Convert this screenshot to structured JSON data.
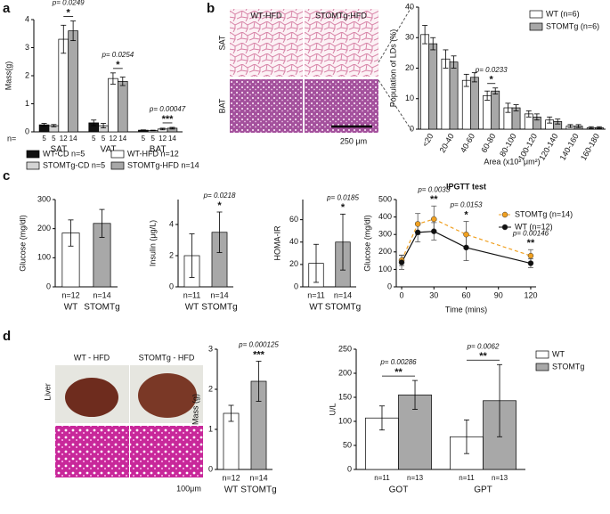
{
  "panels": [
    "a",
    "b",
    "c",
    "d"
  ],
  "adipose_images": {
    "columns": [
      "WT-HFD",
      "STOMTg-HFD"
    ],
    "rows": [
      "SAT",
      "BAT"
    ],
    "scale_bar": "250 μm"
  },
  "liver_images": {
    "columns": [
      "WT - HFD",
      "STOMTg - HFD"
    ],
    "row": "Liver",
    "scale_bar": "100μm"
  },
  "chart_data": [
    {
      "type": "bar",
      "ylabel": "Mass(g)",
      "n_prefix": "n=",
      "categories": [
        "SAT",
        "VAT",
        "BAT"
      ],
      "series": [
        {
          "name": "WT-CD n=5",
          "color": "#111111",
          "n": 5,
          "values": [
            0.25,
            0.32,
            0.06
          ],
          "errors": [
            0.05,
            0.1,
            0.01
          ]
        },
        {
          "name": "STOMTg-CD n=5",
          "color": "#d4d4d4",
          "n": 5,
          "values": [
            0.22,
            0.22,
            0.05
          ],
          "errors": [
            0.04,
            0.08,
            0.01
          ]
        },
        {
          "name": "WT-HFD n=12",
          "color": "#ffffff",
          "n": 12,
          "values": [
            3.3,
            1.9,
            0.1
          ],
          "errors": [
            0.5,
            0.2,
            0.03
          ]
        },
        {
          "name": "STOMTg-HFD n=14",
          "color": "#a8a8a8",
          "n": 14,
          "values": [
            3.6,
            1.8,
            0.13
          ],
          "errors": [
            0.35,
            0.15,
            0.03
          ]
        }
      ],
      "annotations": [
        {
          "p": "p= 0.0249",
          "stars": "*"
        },
        {
          "p": "p= 0.0254",
          "stars": "*"
        },
        {
          "p": "p= 0.00047",
          "stars": "***"
        }
      ],
      "ylim": [
        0,
        4
      ],
      "yticks": [
        0,
        1,
        2,
        3,
        4
      ]
    },
    {
      "type": "bar",
      "ylabel": "Population of LDs (%)",
      "xlabel": "Area (x10² μm²)",
      "categories": [
        "<20",
        "20-40",
        "40-60",
        "60-80",
        "80-100",
        "100-120",
        "120-140",
        "140-160",
        "160-180"
      ],
      "series": [
        {
          "name": "WT (n=6)",
          "color": "#ffffff",
          "values": [
            31,
            23,
            16,
            11,
            7,
            5,
            3,
            1,
            0.5
          ],
          "errors": [
            3,
            3,
            2,
            1.5,
            1.5,
            1,
            1,
            0.5,
            0.3
          ]
        },
        {
          "name": "STOMTg (n=6)",
          "color": "#a8a8a8",
          "values": [
            28,
            22,
            17,
            12.5,
            7,
            4,
            2.5,
            1,
            0.5
          ],
          "errors": [
            2,
            2,
            1.5,
            1,
            1,
            1,
            0.8,
            0.5,
            0.3
          ]
        }
      ],
      "annotations": [
        null,
        null,
        null,
        {
          "p": "p= 0.0233",
          "stars": "*"
        },
        null,
        null,
        null,
        null,
        null
      ],
      "ylim": [
        0,
        40
      ],
      "yticks": [
        0,
        10,
        20,
        30,
        40
      ]
    },
    {
      "type": "bar",
      "ylabel": "Glucose (mg/dl)",
      "categories": [
        "WT",
        "STOMTg"
      ],
      "values": [
        185,
        218
      ],
      "errors": [
        45,
        48
      ],
      "colors": [
        "#ffffff",
        "#a8a8a8"
      ],
      "n_labels": [
        "n=12",
        "n=14"
      ],
      "ylim": [
        0,
        300
      ],
      "yticks": [
        0,
        100,
        200,
        300
      ]
    },
    {
      "type": "bar",
      "ylabel": "Insulin (μg/L)",
      "categories": [
        "WT",
        "STOMTg"
      ],
      "values": [
        2.0,
        3.5
      ],
      "errors": [
        1.4,
        1.3
      ],
      "colors": [
        "#ffffff",
        "#a8a8a8"
      ],
      "n_labels": [
        "n=11",
        "n=14"
      ],
      "annotation": {
        "p": "p= 0.0218",
        "stars": "*"
      },
      "ylim": [
        0,
        5.6
      ],
      "yticks": [
        0,
        2,
        4
      ]
    },
    {
      "type": "bar",
      "ylabel": "HOMA-IR",
      "categories": [
        "WT",
        "STOMTg"
      ],
      "values": [
        21,
        40
      ],
      "errors": [
        17,
        25
      ],
      "colors": [
        "#ffffff",
        "#a8a8a8"
      ],
      "n_labels": [
        "n=11",
        "n=14"
      ],
      "annotation": {
        "p": "p= 0.0185",
        "stars": "*"
      },
      "ylim": [
        0,
        78
      ],
      "yticks": [
        0,
        20,
        40,
        60
      ]
    },
    {
      "type": "line",
      "title": "IPGTT test",
      "ylabel": "Glucose (mg/dl)",
      "xlabel": "Time (mins)",
      "x": [
        0,
        15,
        30,
        60,
        120
      ],
      "series": [
        {
          "name": "STOMTg (n=14)",
          "color": "#f0a020",
          "dashed": true,
          "values": [
            152,
            360,
            388,
            300,
            178
          ],
          "errors": [
            30,
            60,
            75,
            75,
            35
          ]
        },
        {
          "name": "WT (n=12)",
          "color": "#111111",
          "dashed": false,
          "values": [
            140,
            312,
            318,
            225,
            135
          ],
          "errors": [
            40,
            55,
            50,
            75,
            25
          ]
        }
      ],
      "annotations": [
        {
          "x": 30,
          "p": "p= 0.0033",
          "stars": "**"
        },
        {
          "x": 60,
          "p": "p= 0.0153",
          "stars": "*"
        },
        {
          "x": 120,
          "p": "p= 0.00146",
          "stars": "**"
        }
      ],
      "xlim": [
        -5,
        125
      ],
      "xticks": [
        0,
        30,
        60,
        90,
        120
      ],
      "ylim": [
        0,
        500
      ],
      "yticks": [
        0,
        100,
        200,
        300,
        400,
        500
      ]
    },
    {
      "type": "bar",
      "ylabel": "Mass (g)",
      "categories": [
        "WT",
        "STOMTg"
      ],
      "values": [
        1.4,
        2.2
      ],
      "errors": [
        0.2,
        0.5
      ],
      "colors": [
        "#ffffff",
        "#a8a8a8"
      ],
      "n_labels": [
        "n=12",
        "n=14"
      ],
      "annotation": {
        "p": "p= 0.000125",
        "stars": "***"
      },
      "ylim": [
        0,
        3
      ],
      "yticks": [
        0,
        1,
        2,
        3
      ]
    },
    {
      "type": "bar",
      "ylabel": "U/L",
      "categories": [
        "GOT",
        "GPT"
      ],
      "series": [
        {
          "name": "WT",
          "color": "#ffffff",
          "n": "n=11",
          "values": [
            107,
            68
          ],
          "errors": [
            25,
            35
          ]
        },
        {
          "name": "STOMTg",
          "color": "#a8a8a8",
          "n": "n=13",
          "values": [
            155,
            143
          ],
          "errors": [
            30,
            75
          ]
        }
      ],
      "annotations": [
        {
          "p": "p= 0.00286",
          "stars": "**"
        },
        {
          "p": "p= 0.0062",
          "stars": "**"
        }
      ],
      "ylim": [
        0,
        250
      ],
      "yticks": [
        0,
        50,
        100,
        150,
        200,
        250
      ]
    }
  ]
}
